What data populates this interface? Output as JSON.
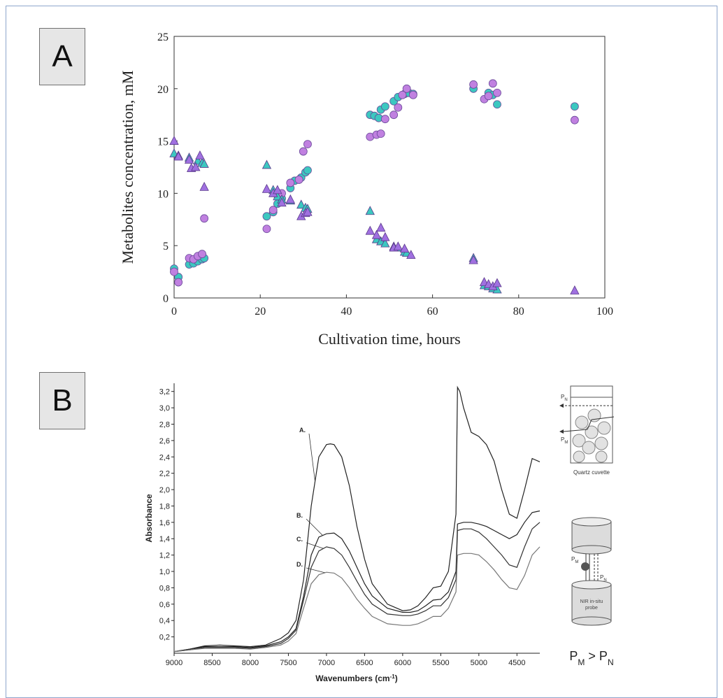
{
  "panels": {
    "a_label": "A",
    "b_label": "B"
  },
  "chart_data": [
    {
      "type": "scatter",
      "panel": "A",
      "title": "",
      "xlabel": "Cultivation time, hours",
      "ylabel": "Metabolites concentration, mM",
      "xlim": [
        0,
        100
      ],
      "ylim": [
        0,
        25
      ],
      "xticks": [
        0,
        20,
        40,
        60,
        80,
        100
      ],
      "yticks": [
        0,
        5,
        10,
        15,
        20,
        25
      ],
      "grid": false,
      "series": [
        {
          "marker": "circle",
          "color": "#3cc8c0",
          "points": [
            [
              0,
              2.8
            ],
            [
              1,
              2.0
            ],
            [
              3.5,
              3.2
            ],
            [
              4.5,
              3.3
            ],
            [
              5.5,
              3.5
            ],
            [
              6.5,
              3.7
            ],
            [
              7,
              3.8
            ],
            [
              21.5,
              7.8
            ],
            [
              23,
              8.2
            ],
            [
              24,
              9.0
            ],
            [
              25,
              9.5
            ],
            [
              27,
              10.5
            ],
            [
              28,
              11.2
            ],
            [
              29.5,
              11.5
            ],
            [
              30.5,
              12.0
            ],
            [
              31,
              12.2
            ],
            [
              45.5,
              17.5
            ],
            [
              46.5,
              17.4
            ],
            [
              47.5,
              17.2
            ],
            [
              48,
              18.0
            ],
            [
              49,
              18.3
            ],
            [
              51,
              18.8
            ],
            [
              52,
              19.2
            ],
            [
              53.5,
              19.5
            ],
            [
              54.5,
              19.6
            ],
            [
              55.5,
              19.5
            ],
            [
              69.5,
              20.0
            ],
            [
              73,
              19.6
            ],
            [
              74,
              19.4
            ],
            [
              75,
              18.5
            ],
            [
              93,
              18.3
            ]
          ]
        },
        {
          "marker": "circle",
          "color": "#c080e0",
          "points": [
            [
              0,
              2.5
            ],
            [
              1,
              1.5
            ],
            [
              3.5,
              3.8
            ],
            [
              4.5,
              3.7
            ],
            [
              5.5,
              4.0
            ],
            [
              6.5,
              4.2
            ],
            [
              7,
              7.6
            ],
            [
              21.5,
              6.6
            ],
            [
              23,
              8.4
            ],
            [
              24,
              9.8
            ],
            [
              25,
              10.0
            ],
            [
              27,
              11.0
            ],
            [
              29,
              11.3
            ],
            [
              30,
              14.0
            ],
            [
              31,
              14.7
            ],
            [
              45.5,
              15.4
            ],
            [
              47,
              15.6
            ],
            [
              48,
              15.7
            ],
            [
              49,
              17.1
            ],
            [
              51,
              17.5
            ],
            [
              52,
              18.2
            ],
            [
              53,
              19.4
            ],
            [
              54,
              20.0
            ],
            [
              55.5,
              19.4
            ],
            [
              69.5,
              20.4
            ],
            [
              72,
              19.0
            ],
            [
              73,
              19.3
            ],
            [
              74,
              20.5
            ],
            [
              75,
              19.6
            ],
            [
              93,
              17.0
            ]
          ]
        },
        {
          "marker": "triangle",
          "color": "#3cc8c0",
          "points": [
            [
              0,
              13.8
            ],
            [
              1,
              13.6
            ],
            [
              3.5,
              13.4
            ],
            [
              5.5,
              13.1
            ],
            [
              6.5,
              12.9
            ],
            [
              7,
              12.8
            ],
            [
              21.5,
              12.7
            ],
            [
              23,
              10.3
            ],
            [
              24,
              9.7
            ],
            [
              25,
              9.4
            ],
            [
              27,
              9.3
            ],
            [
              29.5,
              8.9
            ],
            [
              30.5,
              8.6
            ],
            [
              31,
              8.5
            ],
            [
              45.5,
              8.3
            ],
            [
              47,
              5.6
            ],
            [
              48,
              5.4
            ],
            [
              49,
              5.2
            ],
            [
              51,
              4.9
            ],
            [
              52,
              4.8
            ],
            [
              53.5,
              4.4
            ],
            [
              54,
              4.3
            ],
            [
              69.5,
              3.8
            ],
            [
              72,
              1.2
            ],
            [
              73,
              1.1
            ],
            [
              74,
              0.9
            ],
            [
              75,
              0.8
            ]
          ]
        },
        {
          "marker": "triangle",
          "color": "#a070e0",
          "points": [
            [
              0,
              15.0
            ],
            [
              1,
              13.5
            ],
            [
              3.5,
              13.2
            ],
            [
              4,
              12.4
            ],
            [
              5,
              12.5
            ],
            [
              6,
              13.6
            ],
            [
              7,
              10.6
            ],
            [
              21.5,
              10.4
            ],
            [
              23,
              10.0
            ],
            [
              24,
              10.3
            ],
            [
              25,
              9.1
            ],
            [
              27,
              9.4
            ],
            [
              29.5,
              7.8
            ],
            [
              30.5,
              8.1
            ],
            [
              31,
              8.2
            ],
            [
              45.5,
              6.4
            ],
            [
              47,
              6.0
            ],
            [
              48,
              6.7
            ],
            [
              49,
              5.8
            ],
            [
              51,
              4.8
            ],
            [
              52,
              4.9
            ],
            [
              53.5,
              4.7
            ],
            [
              55,
              4.1
            ],
            [
              69.5,
              3.6
            ],
            [
              72,
              1.5
            ],
            [
              73,
              1.3
            ],
            [
              74,
              1.1
            ],
            [
              75,
              1.4
            ],
            [
              93,
              0.7
            ]
          ]
        }
      ]
    },
    {
      "type": "line",
      "panel": "B",
      "title": "",
      "xlabel": "Wavenumbers (cm",
      "xlabel_sup": "-1",
      "xlabel_end": ")",
      "ylabel": "Absorbance",
      "xlim": [
        9000,
        4200
      ],
      "ylim": [
        0,
        3.3
      ],
      "xticks": [
        9000,
        8500,
        8000,
        7500,
        7000,
        6500,
        6000,
        5500,
        5000,
        4500
      ],
      "yticks": [
        0.2,
        0.4,
        0.6,
        0.8,
        1.0,
        1.2,
        1.4,
        1.6,
        1.8,
        2.0,
        2.2,
        2.4,
        2.6,
        2.8,
        3.0,
        3.2
      ],
      "ytick_labels": [
        "0,2",
        "0,4",
        "0,6",
        "0,8",
        "1,0",
        "1,2",
        "1,4",
        "1,6",
        "1,8",
        "2,0",
        "2,2",
        "2,4",
        "2,6",
        "2,8",
        "3,0",
        "3,2"
      ],
      "grid": false,
      "series": [
        {
          "label": "A.",
          "color": "#222222",
          "x": [
            9000,
            8800,
            8600,
            8400,
            8200,
            8000,
            7800,
            7600,
            7500,
            7400,
            7300,
            7200,
            7100,
            7000,
            6950,
            6900,
            6800,
            6700,
            6600,
            6500,
            6400,
            6200,
            6000,
            5900,
            5800,
            5700,
            5600,
            5500,
            5400,
            5300,
            5280,
            5250,
            5200,
            5100,
            5000,
            4900,
            4800,
            4700,
            4600,
            4500,
            4400,
            4300,
            4200
          ],
          "y": [
            0.02,
            0.05,
            0.09,
            0.1,
            0.09,
            0.08,
            0.1,
            0.18,
            0.25,
            0.4,
            0.9,
            1.8,
            2.4,
            2.55,
            2.56,
            2.55,
            2.4,
            2.05,
            1.55,
            1.15,
            0.85,
            0.6,
            0.52,
            0.53,
            0.58,
            0.68,
            0.8,
            0.82,
            1.0,
            1.7,
            3.25,
            3.2,
            3.0,
            2.7,
            2.65,
            2.55,
            2.35,
            2.0,
            1.7,
            1.65,
            2.0,
            2.38,
            2.34
          ]
        },
        {
          "label": "B.",
          "color": "#222222",
          "x": [
            9000,
            8800,
            8600,
            8400,
            8200,
            8000,
            7800,
            7600,
            7500,
            7400,
            7300,
            7200,
            7100,
            7000,
            6900,
            6800,
            6700,
            6600,
            6500,
            6400,
            6200,
            6000,
            5900,
            5800,
            5700,
            5600,
            5500,
            5400,
            5300,
            5280,
            5200,
            5100,
            5000,
            4900,
            4800,
            4700,
            4600,
            4500,
            4400,
            4300,
            4200
          ],
          "y": [
            0.02,
            0.05,
            0.08,
            0.08,
            0.08,
            0.07,
            0.09,
            0.14,
            0.2,
            0.3,
            0.7,
            1.2,
            1.42,
            1.46,
            1.47,
            1.4,
            1.25,
            1.05,
            0.85,
            0.7,
            0.55,
            0.5,
            0.5,
            0.52,
            0.58,
            0.65,
            0.66,
            0.75,
            1.0,
            1.58,
            1.6,
            1.6,
            1.58,
            1.55,
            1.5,
            1.45,
            1.4,
            1.45,
            1.6,
            1.72,
            1.74
          ]
        },
        {
          "label": "C.",
          "color": "#333333",
          "x": [
            9000,
            8800,
            8600,
            8400,
            8200,
            8000,
            7800,
            7600,
            7500,
            7400,
            7300,
            7200,
            7100,
            7000,
            6900,
            6800,
            6700,
            6600,
            6500,
            6400,
            6200,
            6000,
            5900,
            5800,
            5700,
            5600,
            5500,
            5400,
            5300,
            5280,
            5200,
            5100,
            5000,
            4900,
            4800,
            4700,
            4600,
            4500,
            4400,
            4300,
            4200
          ],
          "y": [
            0.02,
            0.04,
            0.07,
            0.07,
            0.07,
            0.06,
            0.08,
            0.12,
            0.18,
            0.28,
            0.65,
            1.05,
            1.25,
            1.3,
            1.28,
            1.2,
            1.05,
            0.88,
            0.72,
            0.6,
            0.48,
            0.46,
            0.46,
            0.48,
            0.52,
            0.58,
            0.58,
            0.68,
            0.9,
            1.5,
            1.52,
            1.52,
            1.48,
            1.4,
            1.3,
            1.2,
            1.08,
            1.05,
            1.3,
            1.52,
            1.6
          ]
        },
        {
          "label": "D.",
          "color": "#777777",
          "x": [
            9000,
            8800,
            8600,
            8400,
            8200,
            8000,
            7800,
            7600,
            7500,
            7400,
            7300,
            7200,
            7100,
            7000,
            6900,
            6800,
            6700,
            6600,
            6500,
            6400,
            6200,
            6000,
            5900,
            5800,
            5700,
            5600,
            5500,
            5400,
            5300,
            5280,
            5200,
            5100,
            5000,
            4900,
            4800,
            4700,
            4600,
            4500,
            4400,
            4300,
            4200
          ],
          "y": [
            0.02,
            0.04,
            0.06,
            0.06,
            0.06,
            0.05,
            0.07,
            0.1,
            0.15,
            0.24,
            0.55,
            0.85,
            0.96,
            0.99,
            0.98,
            0.92,
            0.8,
            0.66,
            0.55,
            0.45,
            0.36,
            0.34,
            0.34,
            0.36,
            0.4,
            0.45,
            0.45,
            0.55,
            0.75,
            1.2,
            1.22,
            1.22,
            1.2,
            1.12,
            1.02,
            0.9,
            0.8,
            0.78,
            0.95,
            1.2,
            1.3
          ]
        }
      ]
    }
  ],
  "diagram": {
    "cuvette_caption": "Quartz cuvette",
    "pn": "P",
    "pn_sub": "N",
    "pm": "P",
    "pm_sub": "M",
    "probe_caption_1": "NIR in-situ",
    "probe_caption_2": "probe",
    "relation_left": "P",
    "relation_left_sub": "M",
    "relation_op": " > ",
    "relation_right": "P",
    "relation_right_sub": "N"
  }
}
